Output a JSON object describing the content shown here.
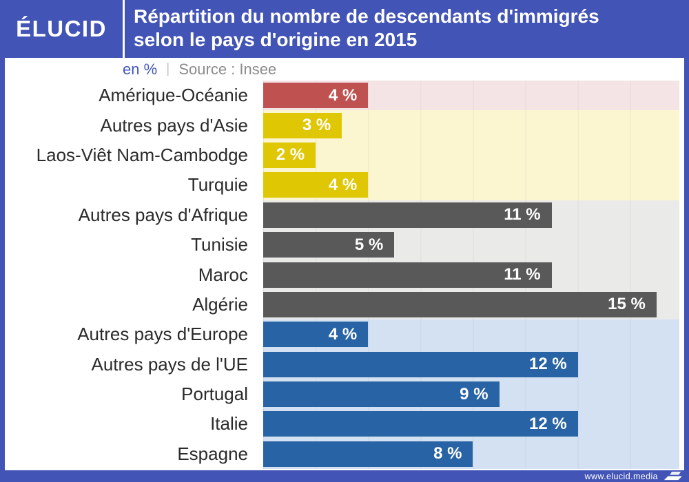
{
  "header": {
    "logo": "ÉLUCID",
    "title_line1": "Répartition du nombre de descendants d'immigrés",
    "title_line2": "selon le pays d'origine en 2015"
  },
  "subtitle": {
    "unit": "en %",
    "separator": "|",
    "source": "Source : Insee"
  },
  "footer": {
    "website": "www.elucid.media"
  },
  "colors": {
    "brand_blue": "#4254b5",
    "subtitle_blue": "#4356c0",
    "label_text": "#2b2b2b",
    "source_gray": "#8c8c8c"
  },
  "chart_data": {
    "type": "bar",
    "orientation": "horizontal",
    "title": "Répartition du nombre de descendants d'immigrés selon le pays d'origine en 2015",
    "unit": "%",
    "source": "Insee",
    "xlim": [
      0,
      15.87
    ],
    "gridline_step": 2,
    "legend_position": "none",
    "groups": {
      "amerique": {
        "bar_color": "#c05151",
        "band_color": "#f5e4e6"
      },
      "asie": {
        "bar_color": "#e0c703",
        "band_color": "#fbf5d0"
      },
      "afrique": {
        "bar_color": "#595959",
        "band_color": "#eaeae9"
      },
      "europe": {
        "bar_color": "#2763a5",
        "band_color": "#d4e1f2"
      }
    },
    "rows": [
      {
        "label": "Amérique-Océanie",
        "value": 4,
        "display": "4 %",
        "group": "amerique"
      },
      {
        "label": "Autres pays d'Asie",
        "value": 3,
        "display": "3 %",
        "group": "asie"
      },
      {
        "label": "Laos-Viêt Nam-Cambodge",
        "value": 2,
        "display": "2 %",
        "group": "asie"
      },
      {
        "label": "Turquie",
        "value": 4,
        "display": "4 %",
        "group": "asie"
      },
      {
        "label": "Autres pays d'Afrique",
        "value": 11,
        "display": "11 %",
        "group": "afrique"
      },
      {
        "label": "Tunisie",
        "value": 5,
        "display": "5 %",
        "group": "afrique"
      },
      {
        "label": "Maroc",
        "value": 11,
        "display": "11 %",
        "group": "afrique"
      },
      {
        "label": "Algérie",
        "value": 15,
        "display": "15 %",
        "group": "afrique"
      },
      {
        "label": "Autres pays d'Europe",
        "value": 4,
        "display": "4 %",
        "group": "europe"
      },
      {
        "label": "Autres pays de l'UE",
        "value": 12,
        "display": "12 %",
        "group": "europe"
      },
      {
        "label": "Portugal",
        "value": 9,
        "display": "9 %",
        "group": "europe"
      },
      {
        "label": "Italie",
        "value": 12,
        "display": "12 %",
        "group": "europe"
      },
      {
        "label": "Espagne",
        "value": 8,
        "display": "8 %",
        "group": "europe"
      }
    ]
  }
}
